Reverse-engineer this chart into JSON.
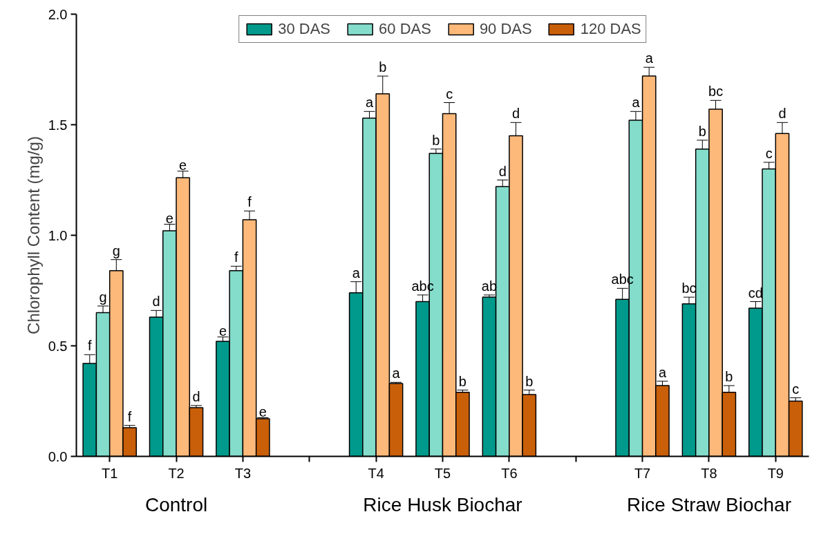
{
  "chart_data": {
    "type": "bar",
    "ylabel": "Chlorophyll Content (mg/g)",
    "categories": [
      "T1",
      "T2",
      "T3",
      null,
      "T4",
      "T5",
      "T6",
      null,
      "T7",
      "T8",
      "T9"
    ],
    "series": [
      {
        "name": "30 DAS",
        "color": "#009a8c",
        "values": [
          0.42,
          0.63,
          0.52,
          null,
          0.74,
          0.7,
          0.72,
          null,
          0.71,
          0.69,
          0.67
        ],
        "errors": [
          0.04,
          0.03,
          0.02,
          null,
          0.05,
          0.03,
          0.01,
          null,
          0.05,
          0.03,
          0.03
        ],
        "value_labels": [
          "f",
          "d",
          "e",
          null,
          "a",
          "abc",
          "ab",
          null,
          "abc",
          "bc",
          "cd"
        ]
      },
      {
        "name": "60 DAS",
        "color": "#84dccb",
        "values": [
          0.65,
          1.02,
          0.84,
          null,
          1.53,
          1.37,
          1.22,
          null,
          1.52,
          1.39,
          1.3
        ],
        "errors": [
          0.03,
          0.03,
          0.02,
          null,
          0.03,
          0.02,
          0.03,
          null,
          0.04,
          0.04,
          0.03
        ],
        "value_labels": [
          "g",
          "e",
          "f",
          null,
          "a",
          "b",
          "d",
          null,
          "a",
          "b",
          "c"
        ]
      },
      {
        "name": "90 DAS",
        "color": "#fdb97a",
        "values": [
          0.84,
          1.26,
          1.07,
          null,
          1.64,
          1.55,
          1.45,
          null,
          1.72,
          1.57,
          1.46
        ],
        "errors": [
          0.05,
          0.03,
          0.04,
          null,
          0.08,
          0.05,
          0.06,
          null,
          0.04,
          0.04,
          0.05
        ],
        "value_labels": [
          "g",
          "e",
          "f",
          null,
          "b",
          "c",
          "d",
          null,
          "a",
          "bc",
          "d"
        ]
      },
      {
        "name": "120 DAS",
        "color": "#c95f08",
        "values": [
          0.13,
          0.22,
          0.17,
          null,
          0.33,
          0.29,
          0.28,
          null,
          0.32,
          0.29,
          0.25
        ],
        "errors": [
          0.01,
          0.01,
          0.005,
          null,
          0.005,
          0.01,
          0.02,
          null,
          0.02,
          0.03,
          0.015
        ],
        "value_labels": [
          "f",
          "d",
          "e",
          null,
          "a",
          "b",
          "b",
          null,
          "a",
          "b",
          "c"
        ]
      }
    ],
    "ylim": [
      0,
      2.0
    ],
    "yticks": [
      {
        "value": 0,
        "label": "0.0"
      },
      0.5,
      {
        "value": 1,
        "label": "1.0"
      },
      1.5,
      {
        "value": 2,
        "label": "2.0"
      }
    ],
    "annotations": [
      "Control",
      "Rice Husk Biochar",
      "Rice Straw Biochar"
    ],
    "legend": "top",
    "grid": false
  }
}
